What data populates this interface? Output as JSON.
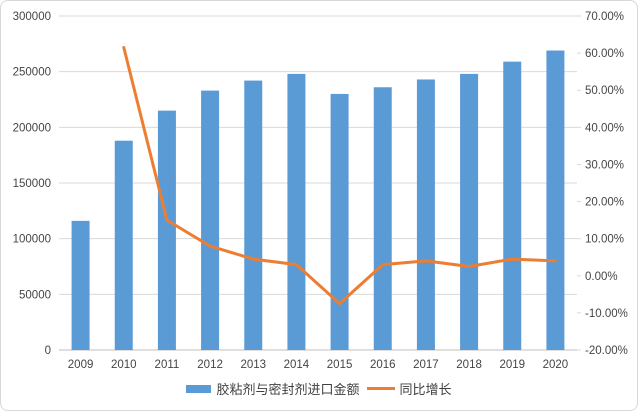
{
  "chart_data": {
    "type": "bar",
    "subtype": "bar-line-combo",
    "title": "",
    "categories": [
      "2009",
      "2010",
      "2011",
      "2012",
      "2013",
      "2014",
      "2015",
      "2016",
      "2017",
      "2018",
      "2019",
      "2020"
    ],
    "series": [
      {
        "name": "胶粘剂与密封剂进口金额",
        "type": "bar",
        "axis": "left",
        "color": "#5B9BD5",
        "values": [
          116000,
          188000,
          215000,
          233000,
          242000,
          248000,
          230000,
          236000,
          243000,
          248000,
          259000,
          269000
        ]
      },
      {
        "name": "同比增长",
        "type": "line",
        "axis": "right",
        "color": "#ED7D31",
        "unit": "%",
        "values": [
          null,
          61.5,
          15,
          8,
          4.5,
          3,
          -7.5,
          3,
          4,
          2.5,
          4.5,
          4
        ]
      }
    ],
    "left_axis": {
      "min": 0,
      "max": 300000,
      "step": 50000,
      "tick_labels": [
        "0",
        "50000",
        "100000",
        "150000",
        "200000",
        "250000",
        "300000"
      ]
    },
    "right_axis": {
      "min": -20,
      "max": 70,
      "step": 10,
      "tick_labels": [
        "-20.00%",
        "-10.00%",
        "0.00%",
        "10.00%",
        "20.00%",
        "30.00%",
        "40.00%",
        "50.00%",
        "60.00%",
        "70.00%"
      ]
    },
    "grid": "horizontal-only",
    "legend_position": "bottom"
  },
  "colors": {
    "bar": "#5B9BD5",
    "line": "#ED7D31",
    "gridline": "#D9D9D9",
    "axis_line": "#BFBFBF",
    "tick_text": "#454545",
    "border": "#D8D8D8"
  }
}
